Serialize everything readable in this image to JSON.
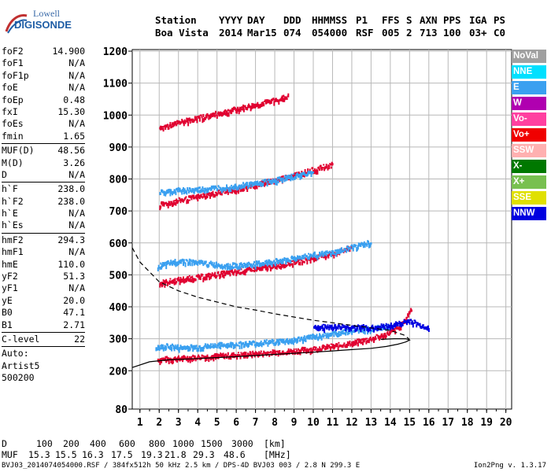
{
  "logo": {
    "line1": "Lowell",
    "line2": "DIGISONDE"
  },
  "header": {
    "columns": [
      {
        "label": "Station",
        "value": "Boa Vista"
      },
      {
        "label": "YYYY",
        "value": "2014"
      },
      {
        "label": "DAY",
        "value": "Mar15"
      },
      {
        "label": "DDD",
        "value": "074"
      },
      {
        "label": "HHMMSS",
        "value": "054000"
      },
      {
        "label": "P1",
        "value": "RSF"
      },
      {
        "label": "FFS",
        "value": "005"
      },
      {
        "label": "S",
        "value": "2"
      },
      {
        "label": "AXN",
        "value": "713"
      },
      {
        "label": "PPS",
        "value": "100"
      },
      {
        "label": "IGA",
        "value": "03+"
      },
      {
        "label": "PS",
        "value": "C0"
      }
    ]
  },
  "params": {
    "group1": [
      {
        "name": "foF2",
        "value": "14.900"
      },
      {
        "name": "foF1",
        "value": "N/A"
      },
      {
        "name": "foF1p",
        "value": "N/A"
      },
      {
        "name": "foE",
        "value": "N/A"
      },
      {
        "name": "foEp",
        "value": "0.48"
      },
      {
        "name": "fxI",
        "value": "15.30"
      },
      {
        "name": "foEs",
        "value": "N/A"
      },
      {
        "name": "fmin",
        "value": "1.65"
      }
    ],
    "group2": [
      {
        "name": "MUF(D)",
        "value": "48.56"
      },
      {
        "name": "M(D)",
        "value": "3.26"
      },
      {
        "name": "D",
        "value": "N/A"
      }
    ],
    "group3": [
      {
        "name": "h`F",
        "value": "238.0"
      },
      {
        "name": "h`F2",
        "value": "238.0"
      },
      {
        "name": "h`E",
        "value": "N/A"
      },
      {
        "name": "h`Es",
        "value": "N/A"
      }
    ],
    "group4": [
      {
        "name": "hmF2",
        "value": "294.3"
      },
      {
        "name": "hmF1",
        "value": "N/A"
      },
      {
        "name": "hmE",
        "value": "110.0"
      },
      {
        "name": "yF2",
        "value": "51.3"
      },
      {
        "name": "yF1",
        "value": "N/A"
      },
      {
        "name": "yE",
        "value": "20.0"
      },
      {
        "name": "B0",
        "value": "47.1"
      },
      {
        "name": "B1",
        "value": "2.71"
      }
    ],
    "group5": [
      {
        "name": "C-level",
        "value": "22"
      }
    ],
    "extra": [
      "Auto:",
      "Artist5",
      "500200"
    ]
  },
  "legend": [
    {
      "label": "NoVal",
      "color": "#a0a0a0"
    },
    {
      "label": "NNE",
      "color": "#00e0ff"
    },
    {
      "label": "E",
      "color": "#3aa0f0"
    },
    {
      "label": "W",
      "color": "#b000b0"
    },
    {
      "label": "Vo-",
      "color": "#ff40a0"
    },
    {
      "label": "Vo+",
      "color": "#f00000"
    },
    {
      "label": "SSW",
      "color": "#ffb0b0"
    },
    {
      "label": "X-",
      "color": "#007800"
    },
    {
      "label": "X+",
      "color": "#78c050"
    },
    {
      "label": "SSE",
      "color": "#e0e000"
    },
    {
      "label": "NNW",
      "color": "#0000e0"
    }
  ],
  "muf_table": {
    "d_label": "D",
    "d_values": [
      "100",
      "200",
      "400",
      "600",
      "800",
      "1000",
      "1500",
      "3000"
    ],
    "d_unit": "[km]",
    "muf_label": "MUF",
    "muf_values": [
      "15.3",
      "15.5",
      "16.3",
      "17.5",
      "19.3",
      "21.8",
      "29.3",
      "48.6"
    ],
    "muf_unit": "[MHz]"
  },
  "footer": "BVJ03_2014074054000.RSF / 384fx512h 50 kHz 2.5 km / DPS-4D BVJ03 003 / 2.8 N 299.3 E",
  "version": "Ion2Png v. 1.3.17",
  "chart_data": {
    "type": "scatter",
    "title": "",
    "xlabel": "",
    "ylabel": "",
    "xlim": [
      0.6,
      20.3
    ],
    "ylim": [
      80,
      1205
    ],
    "x_ticks": [
      "1",
      "2",
      "3",
      "4",
      "5",
      "6",
      "7",
      "8",
      "9",
      "10",
      "11",
      "12",
      "13",
      "14",
      "15",
      "16",
      "17",
      "18",
      "19",
      "20"
    ],
    "y_ticks": [
      "80",
      "200",
      "300",
      "400",
      "500",
      "600",
      "700",
      "800",
      "900",
      "1000",
      "1100",
      "1200"
    ],
    "grid": true,
    "series": [
      {
        "name": "",
        "color": "#e00030",
        "points": [
          [
            1.9,
            238
          ],
          [
            3,
            242
          ],
          [
            4,
            246
          ],
          [
            5,
            250
          ],
          [
            6,
            253
          ],
          [
            7,
            257
          ],
          [
            8,
            261
          ],
          [
            9,
            266
          ],
          [
            10,
            272
          ],
          [
            11,
            280
          ],
          [
            12,
            290
          ],
          [
            13,
            304
          ],
          [
            13.5,
            312
          ],
          [
            14,
            324
          ],
          [
            14.4,
            338
          ],
          [
            14.7,
            356
          ],
          [
            14.9,
            380
          ],
          [
            15.1,
            402
          ]
        ]
      },
      {
        "name": "",
        "color": "#e00030",
        "points": [
          [
            2,
            478
          ],
          [
            3,
            488
          ],
          [
            4,
            496
          ],
          [
            5,
            505
          ],
          [
            6,
            513
          ],
          [
            7,
            522
          ],
          [
            8,
            532
          ],
          [
            9,
            544
          ],
          [
            10,
            556
          ],
          [
            11,
            570
          ],
          [
            12,
            590
          ]
        ]
      },
      {
        "name": "",
        "color": "#e00030",
        "points": [
          [
            2,
            722
          ],
          [
            3,
            736
          ],
          [
            4,
            748
          ],
          [
            5,
            760
          ],
          [
            6,
            772
          ],
          [
            7,
            786
          ],
          [
            8,
            800
          ],
          [
            9,
            816
          ],
          [
            10,
            832
          ],
          [
            11,
            848
          ]
        ]
      },
      {
        "name": "",
        "color": "#e00030",
        "points": [
          [
            2,
            962
          ],
          [
            3,
            980
          ],
          [
            4,
            994
          ],
          [
            5,
            1008
          ],
          [
            6,
            1022
          ],
          [
            7,
            1036
          ],
          [
            8,
            1050
          ],
          [
            8.7,
            1062
          ]
        ]
      },
      {
        "name": "",
        "color": "#3aa0f0",
        "points": [
          [
            1.8,
            274
          ],
          [
            2.5,
            281
          ],
          [
            3,
            276
          ],
          [
            4,
            278
          ],
          [
            5,
            283
          ],
          [
            6,
            286
          ],
          [
            7,
            290
          ],
          [
            8,
            294
          ],
          [
            9,
            300
          ],
          [
            10,
            310
          ],
          [
            11,
            320
          ],
          [
            12,
            330
          ],
          [
            13,
            336
          ],
          [
            14,
            340
          ]
        ]
      },
      {
        "name": "",
        "color": "#3aa0f0",
        "points": [
          [
            1.9,
            530
          ],
          [
            2.5,
            540
          ],
          [
            3,
            548
          ],
          [
            4,
            542
          ],
          [
            5,
            535
          ],
          [
            6,
            532
          ],
          [
            7,
            538
          ],
          [
            8,
            546
          ],
          [
            9,
            556
          ],
          [
            10,
            566
          ],
          [
            11,
            572
          ],
          [
            12,
            590
          ],
          [
            13,
            605
          ]
        ]
      },
      {
        "name": "",
        "color": "#3aa0f0",
        "points": [
          [
            2,
            760
          ],
          [
            3,
            768
          ],
          [
            4,
            770
          ],
          [
            5,
            776
          ],
          [
            6,
            782
          ],
          [
            7,
            790
          ],
          [
            8,
            800
          ],
          [
            9,
            812
          ],
          [
            10,
            826
          ]
        ]
      },
      {
        "name": "",
        "color": "#0000e0",
        "points": [
          [
            10,
            338
          ],
          [
            11,
            342
          ],
          [
            12,
            340
          ],
          [
            13,
            338
          ],
          [
            14,
            345
          ],
          [
            14.5,
            352
          ],
          [
            15,
            360
          ],
          [
            15.5,
            345
          ],
          [
            16,
            340
          ]
        ]
      }
    ],
    "lines": [
      {
        "name": "",
        "style": "solid",
        "points": [
          [
            0.6,
            210
          ],
          [
            1.5,
            228
          ],
          [
            2.5,
            234
          ],
          [
            4,
            238
          ],
          [
            6,
            244
          ],
          [
            8,
            251
          ],
          [
            10,
            258
          ],
          [
            11,
            262
          ],
          [
            12,
            266
          ],
          [
            13,
            270
          ],
          [
            13.8,
            276
          ],
          [
            14.4,
            283
          ],
          [
            14.8,
            290
          ],
          [
            15,
            296
          ],
          [
            14.8,
            300
          ],
          [
            14.2,
            300
          ],
          [
            13.5,
            298
          ]
        ]
      },
      {
        "name": "",
        "style": "dashed",
        "points": [
          [
            0.6,
            585
          ],
          [
            1,
            540
          ],
          [
            2,
            478
          ],
          [
            3,
            450
          ],
          [
            4,
            430
          ],
          [
            5,
            415
          ],
          [
            6,
            400
          ],
          [
            7,
            390
          ],
          [
            8,
            378
          ],
          [
            9,
            368
          ],
          [
            10,
            358
          ],
          [
            11,
            350
          ],
          [
            12,
            342
          ],
          [
            13,
            334
          ],
          [
            14,
            326
          ],
          [
            14.7,
            312
          ],
          [
            15,
            298
          ]
        ]
      }
    ]
  }
}
